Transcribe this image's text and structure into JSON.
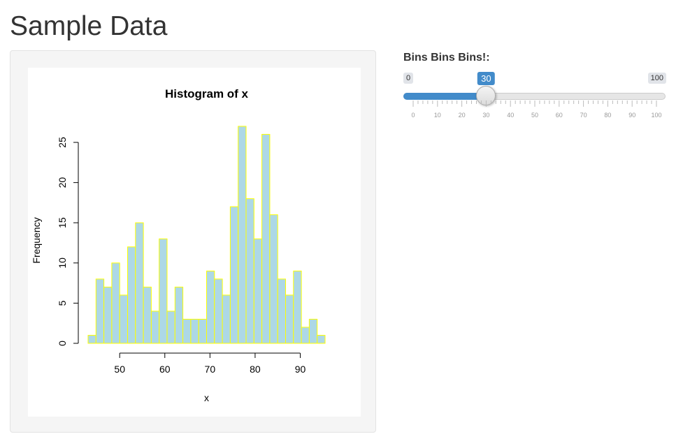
{
  "page": {
    "title": "Sample Data"
  },
  "slider": {
    "label": "Bins Bins Bins!:",
    "min": 0,
    "max": 100,
    "value": 30,
    "min_label": "0",
    "max_label": "100",
    "value_label": "30",
    "grid_labels": [
      "0",
      "10",
      "20",
      "30",
      "40",
      "50",
      "60",
      "70",
      "80",
      "90",
      "100"
    ],
    "accent_color": "#428bca"
  },
  "chart_data": {
    "type": "bar",
    "title": "Histogram of x",
    "xlabel": "x",
    "ylabel": "Frequency",
    "bin_start": 43,
    "bin_width": 1.75,
    "values": [
      1,
      8,
      7,
      10,
      6,
      12,
      15,
      7,
      4,
      13,
      4,
      7,
      3,
      3,
      3,
      9,
      8,
      6,
      17,
      27,
      18,
      13,
      26,
      16,
      8,
      6,
      9,
      2,
      3,
      1
    ],
    "xlim": [
      43,
      95.5
    ],
    "ylim": [
      0,
      27
    ],
    "x_ticks": [
      50,
      60,
      70,
      80,
      90
    ],
    "y_ticks": [
      0,
      5,
      10,
      15,
      20,
      25
    ],
    "bar_fill": "#add8e6",
    "bar_border": "#ffff00"
  }
}
